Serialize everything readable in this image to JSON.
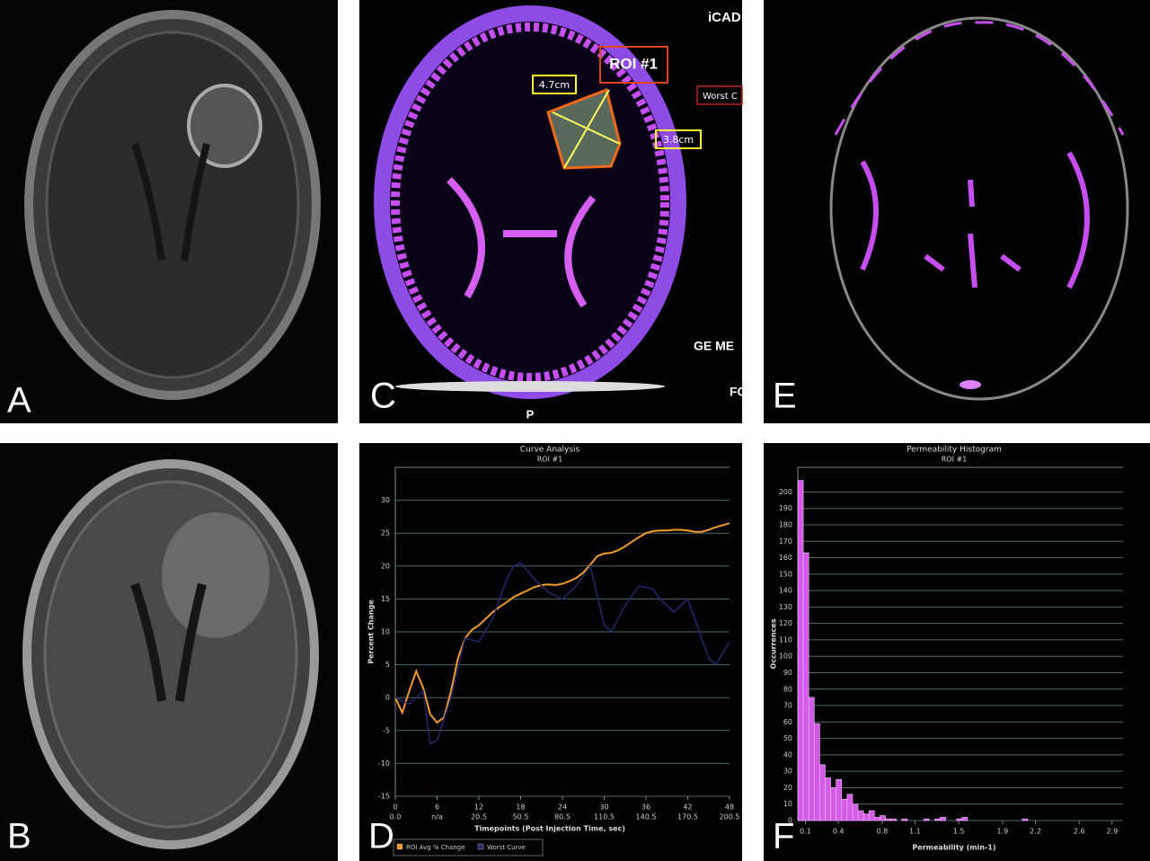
{
  "panels": [
    {
      "label": "A"
    },
    {
      "label": "C",
      "annotations": [
        "iCAD",
        "ROI #1",
        "4.7cm",
        "3.8cm",
        "Worst C",
        "GE ME",
        "P",
        "FC"
      ]
    },
    {
      "label": "E"
    },
    {
      "label": "B"
    },
    {
      "label": "D"
    },
    {
      "label": "F"
    }
  ],
  "chart_data": [
    {
      "type": "line",
      "title": "Curve Analysis",
      "subtitle": "ROI #1",
      "x_label": "Timepoints (Post Injection Time, sec)",
      "y_label": "Percent Change",
      "xlim": [
        0,
        48
      ],
      "xticks": [
        0,
        6,
        12,
        18,
        24,
        30,
        36,
        42,
        48
      ],
      "xtick_sublabels": [
        "0.0",
        "n/a",
        "20.5",
        "50.5",
        "80.5",
        "110.5",
        "140.5",
        "170.5",
        "200.5"
      ],
      "ylim": [
        -15,
        35
      ],
      "yticks": [
        -15,
        -10,
        -5,
        0,
        5,
        10,
        15,
        20,
        25,
        30
      ],
      "grid": true,
      "series": [
        {
          "name": "ROI Avg % Change",
          "color": "#f39a2c",
          "x": [
            0,
            1,
            2,
            3,
            4,
            5,
            6,
            7,
            8,
            9,
            10,
            11,
            12,
            13,
            14,
            15,
            16,
            17,
            18,
            19,
            20,
            21,
            22,
            23,
            24,
            25,
            26,
            27,
            28,
            29,
            30,
            31,
            32,
            33,
            34,
            35,
            36,
            37,
            38,
            39,
            40,
            41,
            42,
            43,
            44,
            45,
            46,
            47,
            48
          ],
          "values": [
            0,
            -2.3,
            1,
            4,
            1.5,
            -2.5,
            -3.8,
            -3,
            1,
            6,
            9,
            10.3,
            11,
            12,
            13,
            13.8,
            14.5,
            15.3,
            15.8,
            16.3,
            16.8,
            17.1,
            17.2,
            17.1,
            17.3,
            17.7,
            18.2,
            19,
            20.2,
            21.5,
            21.9,
            22,
            22.4,
            23,
            23.7,
            24.4,
            25,
            25.3,
            25.4,
            25.4,
            25.5,
            25.5,
            25.4,
            25.2,
            25.2,
            25.5,
            25.9,
            26.2,
            26.5
          ]
        },
        {
          "name": "Worst Curve",
          "color": "#25286e",
          "x": [
            0,
            2,
            4,
            5,
            6,
            8,
            10,
            12,
            14,
            16,
            17,
            18,
            20,
            22,
            24,
            26,
            28,
            30,
            31,
            33,
            35,
            37,
            38,
            40,
            42,
            43,
            45,
            46,
            48
          ],
          "values": [
            0,
            -1,
            1,
            -7,
            -6.5,
            0,
            9,
            8.5,
            12,
            18,
            20,
            20.5,
            18,
            16,
            15,
            17,
            20,
            11,
            10,
            14,
            17,
            16.5,
            15,
            13,
            15,
            12,
            6,
            5,
            8.5
          ]
        }
      ]
    },
    {
      "type": "histogram",
      "title": "Permeability Histogram",
      "subtitle": "ROI #1",
      "x_label": "Permeability (min-1)",
      "y_label": "Occurrences",
      "color": "#d45be8",
      "bins": [
        0.03,
        0.08,
        0.13,
        0.18,
        0.23,
        0.28,
        0.33,
        0.38,
        0.43,
        0.48,
        0.53,
        0.58,
        0.63,
        0.68,
        0.73,
        0.78,
        0.83,
        0.88,
        0.93,
        0.98,
        1.03,
        1.08,
        1.13,
        1.18,
        1.23,
        1.28,
        1.33,
        1.38,
        1.43,
        1.48,
        1.53,
        1.58,
        1.63,
        1.68,
        1.73,
        1.78,
        1.83,
        1.88,
        1.93,
        1.98,
        2.03,
        2.08,
        2.13,
        2.18,
        2.23,
        2.28,
        2.33,
        2.38,
        2.43,
        2.48,
        2.53,
        2.58,
        2.63,
        2.68,
        2.73,
        2.78,
        2.83,
        2.88,
        2.93
      ],
      "values": [
        207,
        163,
        75,
        59,
        34,
        26,
        20,
        25,
        13,
        16,
        10,
        6,
        4,
        6,
        2,
        3,
        1,
        1,
        0,
        1,
        0,
        0,
        0,
        1,
        0,
        1,
        2,
        0,
        0,
        1,
        2,
        0,
        0,
        0,
        0,
        0,
        0,
        0,
        0,
        0,
        0,
        1,
        0,
        0,
        0,
        0,
        0,
        0,
        0,
        0,
        0,
        0,
        0,
        0,
        0,
        0,
        0,
        0
      ],
      "xlim": [
        0.03,
        3
      ],
      "xticks": [
        0.1,
        0.4,
        0.8,
        1.1,
        1.5,
        1.9,
        2.2,
        2.6,
        2.9
      ],
      "ylim": [
        0,
        215
      ],
      "yticks": [
        0,
        10,
        20,
        30,
        40,
        50,
        60,
        70,
        80,
        90,
        100,
        110,
        120,
        130,
        140,
        150,
        160,
        170,
        180,
        190,
        200
      ],
      "grid": true
    }
  ]
}
